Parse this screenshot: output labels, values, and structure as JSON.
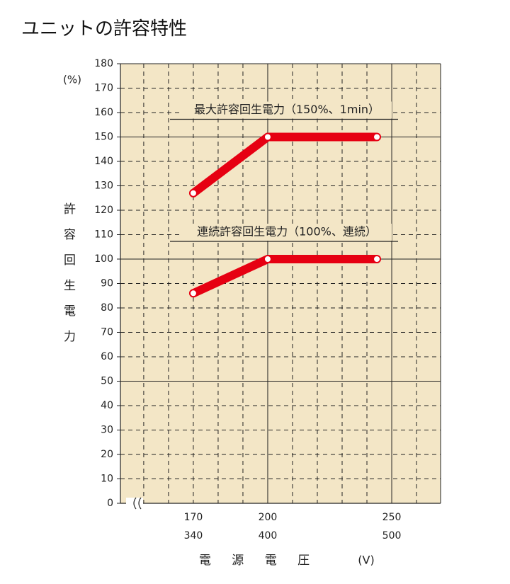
{
  "chart_data": {
    "type": "line",
    "title": "ユニットの許容特性",
    "y_label": "許容回生電力",
    "y_unit": "(%)",
    "x_label": "電 源 電 圧",
    "x_unit": "(V)",
    "x": [
      170,
      200,
      244
    ],
    "series": [
      {
        "name": "最大許容回生電力（150%、1min）",
        "color": "#e60012",
        "values": [
          127,
          150,
          150
        ]
      },
      {
        "name": "連続許容回生電力（100%、連続）",
        "color": "#e60012",
        "values": [
          86,
          100,
          100
        ]
      }
    ],
    "xlim": [
      140.6,
      269.7
    ],
    "ylim": [
      0,
      180
    ],
    "xticks": [
      170,
      200,
      250
    ],
    "xticks2": [
      {
        "value": 170,
        "label": "340"
      },
      {
        "value": 200,
        "label": "400"
      },
      {
        "value": 250,
        "label": "500"
      }
    ],
    "yticks": [
      0,
      10,
      20,
      30,
      40,
      50,
      60,
      70,
      80,
      90,
      100,
      110,
      120,
      130,
      140,
      150,
      160,
      170,
      180
    ],
    "xgrid": [
      150,
      160,
      170,
      180,
      190,
      200,
      210,
      220,
      230,
      240,
      250,
      260
    ],
    "solid_x": [
      200,
      250
    ],
    "solid_y": [
      50,
      100,
      150
    ],
    "background": "#f3e6c6",
    "grid": true
  }
}
